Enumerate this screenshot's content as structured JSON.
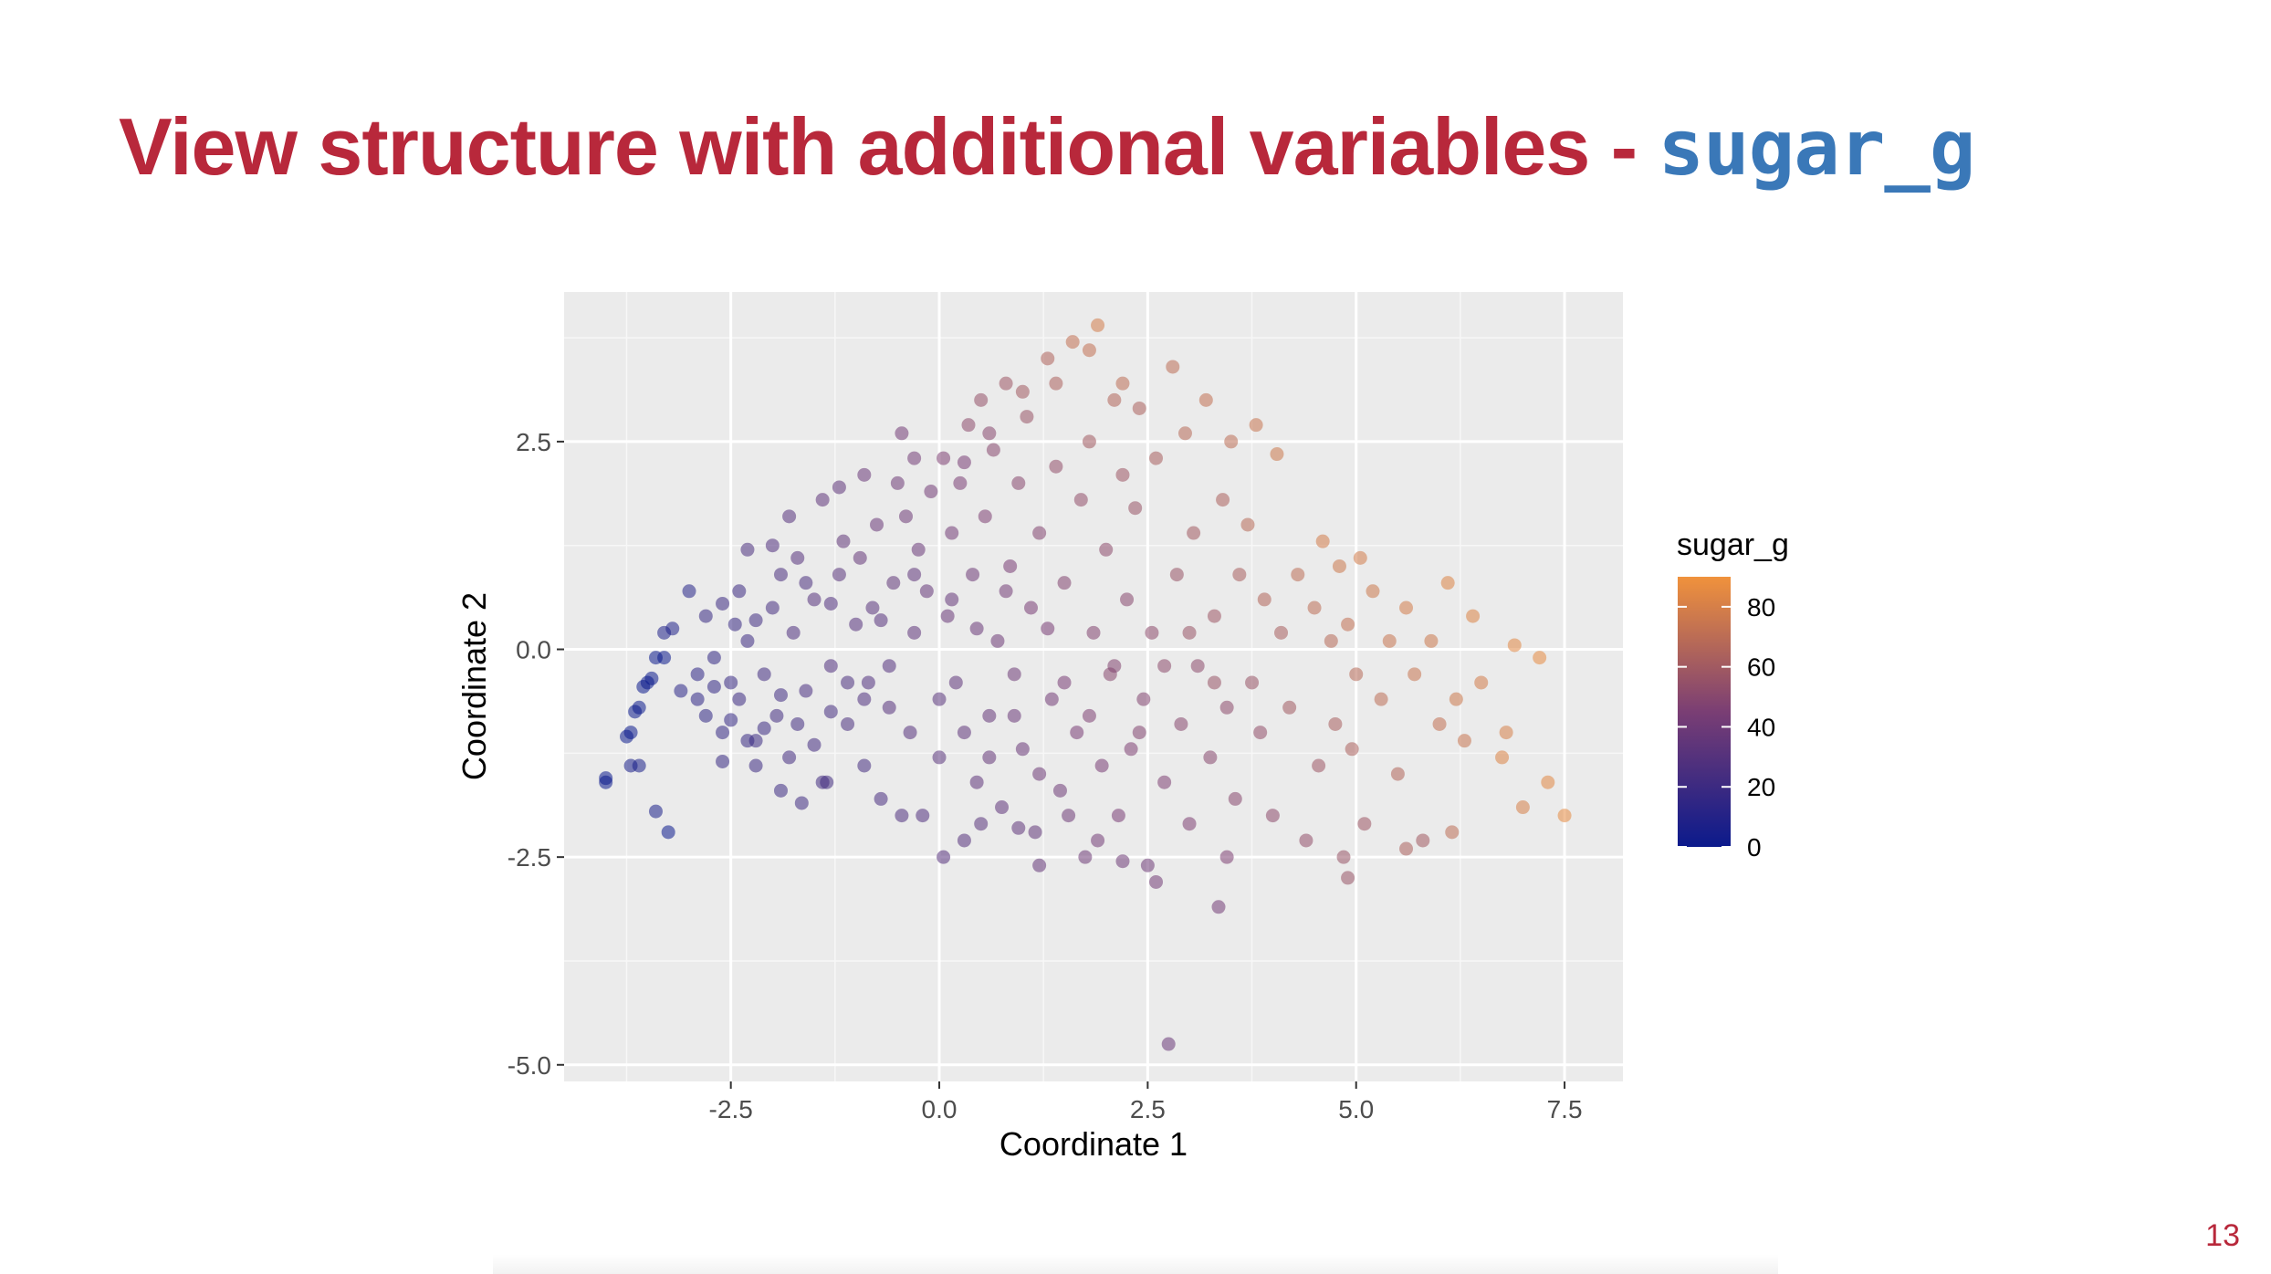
{
  "slide": {
    "title_text": "View structure with additional variables - ",
    "title_code": "sugar_g",
    "page_number": "13"
  },
  "chart_data": {
    "type": "scatter",
    "xlabel": "Coordinate 1",
    "ylabel": "Coordinate 2",
    "xlim": [
      -4.5,
      8.2
    ],
    "ylim": [
      -5.2,
      4.3
    ],
    "x_ticks": [
      -2.5,
      0.0,
      2.5,
      5.0,
      7.5
    ],
    "y_ticks": [
      -5.0,
      -2.5,
      0.0,
      2.5
    ],
    "x_tick_labels": [
      "-2.5",
      "0.0",
      "2.5",
      "5.0",
      "7.5"
    ],
    "y_tick_labels": [
      "-5.0",
      "-2.5",
      "0.0",
      "2.5"
    ],
    "grid": true,
    "panel_background": "#ebebeb",
    "color_variable": "sugar_g",
    "color_scale": {
      "low": "#0b1a8c",
      "mid": "#7a3e74",
      "high": "#f0923c",
      "range": [
        0,
        90
      ],
      "ticks": [
        0,
        20,
        40,
        60,
        80
      ],
      "tick_labels": [
        "0",
        "20",
        "40",
        "60",
        "80"
      ]
    },
    "legend_position": "right",
    "point_alpha": 0.55,
    "points": [
      [
        -4.0,
        -1.55,
        0
      ],
      [
        -4.0,
        -1.6,
        0
      ],
      [
        -3.7,
        -1.0,
        0
      ],
      [
        -3.75,
        -1.05,
        0
      ],
      [
        -3.6,
        -0.7,
        0
      ],
      [
        -3.65,
        -0.75,
        0
      ],
      [
        -3.5,
        -0.4,
        0
      ],
      [
        -3.45,
        -0.35,
        0
      ],
      [
        -3.4,
        -0.1,
        0
      ],
      [
        -3.3,
        -0.1,
        0
      ],
      [
        -3.55,
        -0.45,
        0
      ],
      [
        -3.25,
        -2.2,
        0
      ],
      [
        -3.7,
        -1.4,
        5
      ],
      [
        -3.6,
        -1.4,
        6
      ],
      [
        -3.4,
        -1.95,
        6
      ],
      [
        -3.3,
        0.2,
        8
      ],
      [
        -3.2,
        0.25,
        8
      ],
      [
        -3.0,
        0.7,
        10
      ],
      [
        -3.1,
        -0.5,
        12
      ],
      [
        -2.9,
        -0.3,
        14
      ],
      [
        -2.8,
        -0.8,
        15
      ],
      [
        -2.7,
        -0.1,
        16
      ],
      [
        -2.6,
        -1.0,
        17
      ],
      [
        -2.5,
        -0.4,
        18
      ],
      [
        -2.45,
        0.3,
        18
      ],
      [
        -2.4,
        -0.6,
        20
      ],
      [
        -2.3,
        0.1,
        20
      ],
      [
        -2.2,
        -1.1,
        19
      ],
      [
        -2.1,
        -0.3,
        22
      ],
      [
        -2.0,
        0.5,
        24
      ],
      [
        -1.95,
        -0.8,
        22
      ],
      [
        -1.9,
        0.9,
        26
      ],
      [
        -1.8,
        -1.3,
        23
      ],
      [
        -1.75,
        0.2,
        27
      ],
      [
        -1.7,
        1.1,
        30
      ],
      [
        -1.6,
        -0.5,
        25
      ],
      [
        -1.5,
        0.6,
        30
      ],
      [
        -1.4,
        1.8,
        34
      ],
      [
        -1.35,
        -1.6,
        22
      ],
      [
        -1.3,
        -0.2,
        28
      ],
      [
        -1.2,
        0.9,
        32
      ],
      [
        -1.15,
        1.3,
        35
      ],
      [
        -1.1,
        -0.9,
        26
      ],
      [
        -1.0,
        0.3,
        30
      ],
      [
        -0.95,
        1.1,
        36
      ],
      [
        -0.9,
        -1.4,
        24
      ],
      [
        -0.85,
        -0.4,
        28
      ],
      [
        -0.8,
        0.5,
        32
      ],
      [
        -0.75,
        1.5,
        38
      ],
      [
        -0.7,
        -1.8,
        25
      ],
      [
        -0.6,
        -0.7,
        30
      ],
      [
        -0.55,
        0.8,
        35
      ],
      [
        -0.5,
        2.0,
        40
      ],
      [
        -0.45,
        2.6,
        42
      ],
      [
        -0.4,
        1.6,
        40
      ],
      [
        -0.35,
        -1.0,
        30
      ],
      [
        -0.3,
        0.2,
        34
      ],
      [
        -0.25,
        1.2,
        38
      ],
      [
        -0.2,
        -2.0,
        28
      ],
      [
        -0.15,
        0.7,
        36
      ],
      [
        -0.1,
        1.9,
        42
      ],
      [
        0.0,
        -1.3,
        32
      ],
      [
        0.05,
        2.3,
        46
      ],
      [
        0.1,
        0.4,
        38
      ],
      [
        0.15,
        1.4,
        42
      ],
      [
        0.2,
        -0.4,
        34
      ],
      [
        0.25,
        2.0,
        45
      ],
      [
        0.3,
        -2.3,
        30
      ],
      [
        0.35,
        2.7,
        52
      ],
      [
        0.4,
        0.9,
        40
      ],
      [
        0.45,
        -1.6,
        34
      ],
      [
        0.5,
        3.0,
        55
      ],
      [
        0.55,
        1.6,
        46
      ],
      [
        0.6,
        -0.8,
        36
      ],
      [
        0.65,
        2.4,
        50
      ],
      [
        0.7,
        0.1,
        40
      ],
      [
        0.75,
        -1.9,
        34
      ],
      [
        0.8,
        3.2,
        58
      ],
      [
        0.85,
        1.0,
        44
      ],
      [
        0.9,
        -0.3,
        40
      ],
      [
        0.95,
        2.0,
        50
      ],
      [
        1.0,
        -1.2,
        38
      ],
      [
        1.05,
        2.8,
        56
      ],
      [
        1.1,
        0.5,
        44
      ],
      [
        1.15,
        -2.2,
        35
      ],
      [
        1.2,
        1.4,
        48
      ],
      [
        1.3,
        3.5,
        65
      ],
      [
        1.35,
        -0.6,
        42
      ],
      [
        1.4,
        2.2,
        54
      ],
      [
        1.45,
        -1.7,
        40
      ],
      [
        1.5,
        0.8,
        48
      ],
      [
        1.6,
        3.7,
        72
      ],
      [
        1.65,
        -1.0,
        44
      ],
      [
        1.7,
        1.8,
        54
      ],
      [
        1.75,
        -2.5,
        40
      ],
      [
        1.8,
        2.5,
        60
      ],
      [
        1.85,
        0.2,
        48
      ],
      [
        1.9,
        3.9,
        78
      ],
      [
        1.95,
        -1.4,
        44
      ],
      [
        2.0,
        1.2,
        52
      ],
      [
        2.05,
        -0.3,
        50
      ],
      [
        2.1,
        3.0,
        66
      ],
      [
        2.15,
        -2.0,
        44
      ],
      [
        2.2,
        2.1,
        58
      ],
      [
        2.25,
        0.6,
        50
      ],
      [
        2.3,
        -1.2,
        46
      ],
      [
        2.35,
        1.7,
        56
      ],
      [
        2.4,
        2.9,
        64
      ],
      [
        2.45,
        -0.6,
        48
      ],
      [
        2.5,
        -2.6,
        40
      ],
      [
        2.55,
        0.2,
        52
      ],
      [
        2.6,
        2.3,
        62
      ],
      [
        2.7,
        -1.6,
        46
      ],
      [
        2.75,
        -4.75,
        38
      ],
      [
        2.8,
        3.4,
        70
      ],
      [
        2.85,
        0.9,
        56
      ],
      [
        2.9,
        -0.9,
        50
      ],
      [
        2.95,
        2.6,
        68
      ],
      [
        3.0,
        -2.1,
        46
      ],
      [
        3.05,
        1.4,
        60
      ],
      [
        3.1,
        -0.2,
        52
      ],
      [
        3.2,
        3.0,
        72
      ],
      [
        3.25,
        -1.3,
        50
      ],
      [
        3.3,
        0.4,
        58
      ],
      [
        3.35,
        -3.1,
        42
      ],
      [
        3.4,
        1.8,
        64
      ],
      [
        3.45,
        -0.7,
        52
      ],
      [
        3.5,
        2.5,
        70
      ],
      [
        3.55,
        -1.8,
        50
      ],
      [
        3.6,
        0.9,
        62
      ],
      [
        3.7,
        1.5,
        68
      ],
      [
        3.75,
        -0.4,
        56
      ],
      [
        3.8,
        2.7,
        74
      ],
      [
        3.85,
        -1.0,
        54
      ],
      [
        3.9,
        0.6,
        66
      ],
      [
        4.0,
        -2.0,
        52
      ],
      [
        4.05,
        2.35,
        76
      ],
      [
        4.1,
        0.2,
        62
      ],
      [
        4.2,
        -0.7,
        60
      ],
      [
        4.3,
        0.9,
        70
      ],
      [
        4.4,
        -2.3,
        54
      ],
      [
        4.5,
        0.5,
        70
      ],
      [
        4.55,
        -1.4,
        58
      ],
      [
        4.6,
        1.3,
        78
      ],
      [
        4.7,
        0.1,
        68
      ],
      [
        4.75,
        -0.9,
        62
      ],
      [
        4.8,
        1.0,
        76
      ],
      [
        4.85,
        -2.5,
        56
      ],
      [
        4.9,
        0.3,
        72
      ],
      [
        4.95,
        -1.2,
        64
      ],
      [
        5.0,
        -0.3,
        68
      ],
      [
        5.05,
        1.1,
        78
      ],
      [
        5.1,
        -2.1,
        58
      ],
      [
        5.2,
        0.7,
        76
      ],
      [
        5.3,
        -0.6,
        70
      ],
      [
        5.4,
        0.1,
        74
      ],
      [
        5.5,
        -1.5,
        66
      ],
      [
        5.6,
        0.5,
        78
      ],
      [
        5.7,
        -0.3,
        74
      ],
      [
        5.8,
        -2.3,
        60
      ],
      [
        5.9,
        0.1,
        76
      ],
      [
        6.0,
        -0.9,
        72
      ],
      [
        6.1,
        0.8,
        82
      ],
      [
        6.2,
        -0.6,
        76
      ],
      [
        6.3,
        -1.1,
        74
      ],
      [
        6.4,
        0.4,
        82
      ],
      [
        6.5,
        -0.4,
        78
      ],
      [
        6.8,
        -1.0,
        80
      ],
      [
        6.9,
        0.05,
        84
      ],
      [
        7.0,
        -1.9,
        80
      ],
      [
        7.2,
        -0.1,
        86
      ],
      [
        7.3,
        -1.6,
        84
      ],
      [
        7.5,
        -2.0,
        86
      ],
      [
        6.75,
        -1.3,
        82
      ],
      [
        6.15,
        -2.2,
        70
      ],
      [
        5.6,
        -2.4,
        64
      ],
      [
        4.9,
        -2.75,
        56
      ],
      [
        2.6,
        -2.8,
        42
      ],
      [
        2.2,
        -2.55,
        40
      ],
      [
        3.45,
        -2.5,
        46
      ],
      [
        -1.9,
        -1.7,
        20
      ],
      [
        -2.2,
        -1.4,
        20
      ],
      [
        -2.6,
        -1.35,
        18
      ],
      [
        -1.4,
        -1.6,
        22
      ],
      [
        -1.65,
        -1.85,
        21
      ],
      [
        -0.45,
        -2.0,
        27
      ],
      [
        0.05,
        -2.5,
        30
      ],
      [
        0.5,
        -2.1,
        32
      ],
      [
        1.2,
        -2.6,
        36
      ],
      [
        0.95,
        -2.15,
        34
      ],
      [
        1.55,
        -2.0,
        40
      ],
      [
        1.9,
        -2.3,
        42
      ],
      [
        -2.3,
        1.2,
        26
      ],
      [
        -2.0,
        1.25,
        28
      ],
      [
        -1.8,
        1.6,
        30
      ],
      [
        -1.2,
        1.95,
        34
      ],
      [
        -0.9,
        2.1,
        38
      ],
      [
        -0.3,
        2.3,
        42
      ],
      [
        0.3,
        2.25,
        44
      ],
      [
        0.6,
        2.6,
        50
      ],
      [
        1.0,
        3.1,
        60
      ],
      [
        1.4,
        3.2,
        64
      ],
      [
        1.8,
        3.6,
        72
      ],
      [
        2.2,
        3.2,
        70
      ],
      [
        -2.8,
        0.4,
        18
      ],
      [
        -2.6,
        0.55,
        20
      ],
      [
        -2.4,
        0.7,
        20
      ],
      [
        -2.2,
        0.35,
        21
      ],
      [
        -1.6,
        0.8,
        26
      ],
      [
        -1.3,
        0.55,
        28
      ],
      [
        -0.7,
        0.35,
        30
      ],
      [
        -0.3,
        0.9,
        34
      ],
      [
        0.15,
        0.6,
        36
      ],
      [
        0.45,
        0.25,
        38
      ],
      [
        0.8,
        0.7,
        42
      ],
      [
        1.3,
        0.25,
        44
      ],
      [
        -2.9,
        -0.6,
        14
      ],
      [
        -2.7,
        -0.45,
        16
      ],
      [
        -2.5,
        -0.85,
        17
      ],
      [
        -2.3,
        -1.1,
        18
      ],
      [
        -2.1,
        -0.95,
        19
      ],
      [
        -1.9,
        -0.55,
        21
      ],
      [
        -1.7,
        -0.9,
        22
      ],
      [
        -1.5,
        -1.15,
        23
      ],
      [
        -1.3,
        -0.75,
        24
      ],
      [
        -1.1,
        -0.4,
        26
      ],
      [
        -0.9,
        -0.6,
        27
      ],
      [
        -0.6,
        -0.2,
        29
      ],
      [
        0.0,
        -0.6,
        32
      ],
      [
        0.3,
        -1.0,
        34
      ],
      [
        0.6,
        -1.3,
        36
      ],
      [
        0.9,
        -0.8,
        38
      ],
      [
        1.2,
        -1.5,
        40
      ],
      [
        1.5,
        -0.4,
        44
      ],
      [
        1.8,
        -0.8,
        46
      ],
      [
        2.1,
        -0.2,
        48
      ],
      [
        2.4,
        -1.0,
        48
      ],
      [
        2.7,
        -0.2,
        52
      ],
      [
        3.0,
        0.2,
        56
      ],
      [
        3.3,
        -0.4,
        56
      ]
    ]
  }
}
